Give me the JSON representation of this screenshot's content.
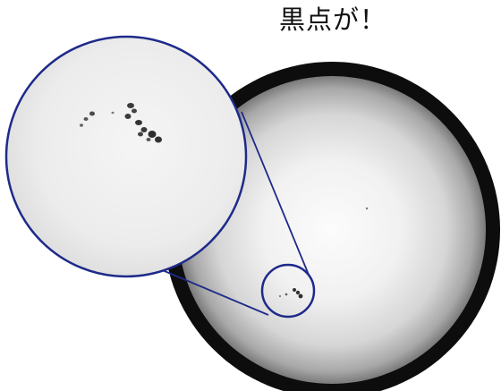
{
  "caption": "黒点が！",
  "colors": {
    "callout_stroke": "#1e2a8a",
    "sun_rim": "#101010",
    "sun_center": "#fbfbfb",
    "sun_limb": "#8e8e8e",
    "spot": "#3a3a3a"
  },
  "image": {
    "subject": "sun-disk-with-sunspots",
    "callout": "zoom-magnifier-circle"
  }
}
